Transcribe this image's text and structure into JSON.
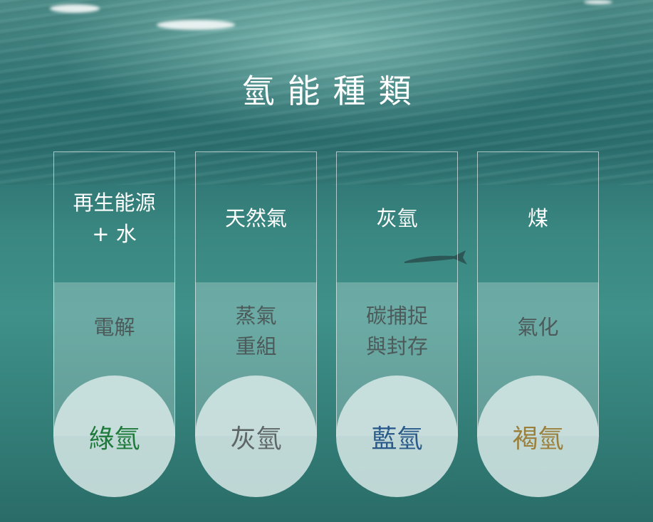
{
  "title": "氫能種類",
  "columns": [
    {
      "source_line1": "再生能源",
      "source_line2": "+ 水",
      "process_line1": "電解",
      "process_line2": "",
      "result": "綠氫",
      "result_color": "#1e7a3a"
    },
    {
      "source_line1": "天然氣",
      "source_line2": "",
      "process_line1": "蒸氣",
      "process_line2": "重組",
      "result": "灰氫",
      "result_color": "#5e6666"
    },
    {
      "source_line1": "灰氫",
      "source_line2": "",
      "process_line1": "碳捕捉",
      "process_line2": "與封存",
      "result": "藍氫",
      "result_color": "#2a5a8a"
    },
    {
      "source_line1": "煤",
      "source_line2": "",
      "process_line1": "氣化",
      "process_line2": "",
      "result": "褐氫",
      "result_color": "#9b7f3a"
    }
  ]
}
